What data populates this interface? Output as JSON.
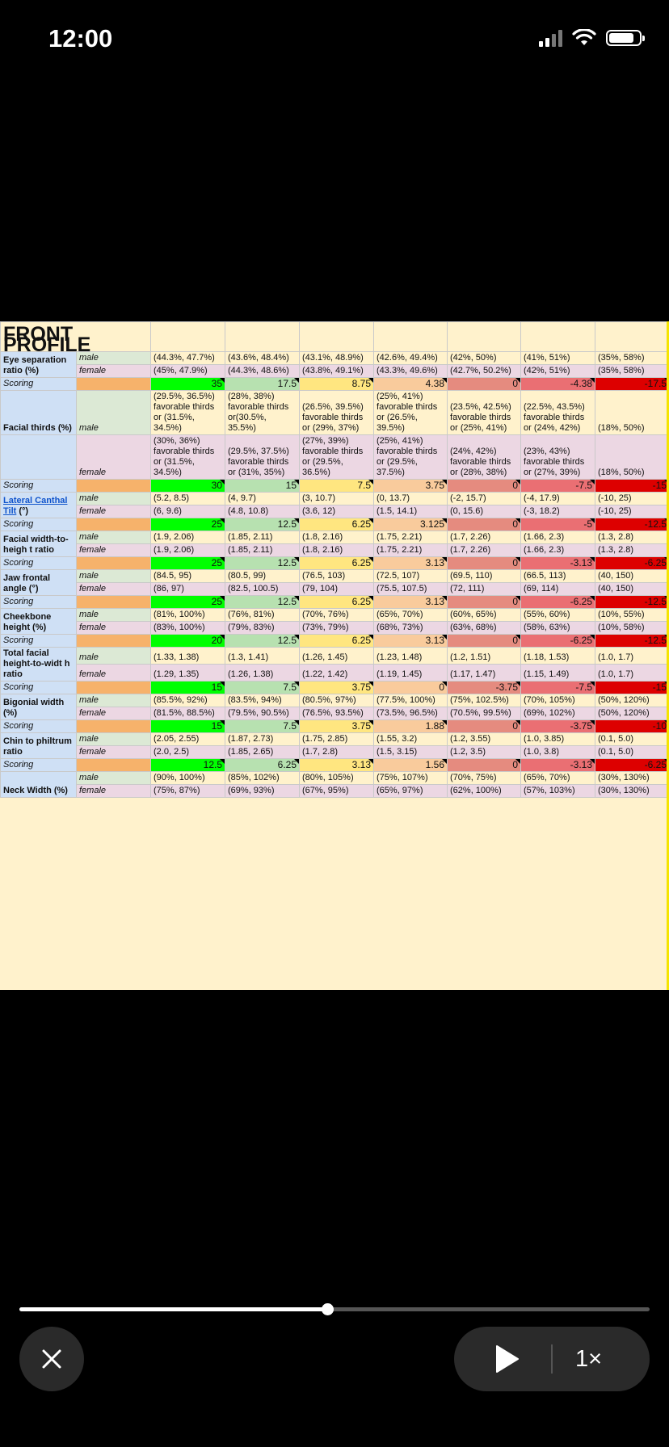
{
  "status_bar": {
    "time": "12:00"
  },
  "sheet": {
    "title": "FRONT PROFILE",
    "score_colors": [
      "#f6b26b",
      "#00ff00",
      "#b7e1b0",
      "#ffe680",
      "#f9cb9c",
      "#e58b7f",
      "#ea6f73",
      "#dd0000"
    ],
    "rows": [
      {
        "kind": "male",
        "label": "Eye separation ratio (%)",
        "label_span": 2,
        "sex": "male",
        "values": [
          "(44.3%, 47.7%)",
          "(43.6%, 48.4%)",
          "(43.1%, 48.9%)",
          "(42.6%, 49.4%)",
          "(42%, 50%)",
          "(41%, 51%)",
          "(35%, 58%)"
        ]
      },
      {
        "kind": "female",
        "sex": "female",
        "values": [
          "(45%, 47.9%)",
          "(44.3%, 48.6%)",
          "(43.8%, 49.1%)",
          "(43.3%, 49.6%)",
          "(42.7%, 50.2%)",
          "(42%, 51%)",
          "(35%, 58%)"
        ]
      },
      {
        "kind": "scoring",
        "label": "Scoring",
        "values": [
          "35",
          "17.5",
          "8.75",
          "4.38",
          "0",
          "-4.38",
          "-17.5"
        ]
      },
      {
        "kind": "male",
        "label": "Facial thirds (%)",
        "label_span": 1,
        "sex": "male",
        "values": [
          "(29.5%, 36.5%) favorable thirds or (31.5%, 34.5%)",
          "(28%, 38%) favorable thirds or(30.5%, 35.5%)",
          "(26.5%, 39.5%) favorable thirds or (29%, 37%)",
          "(25%, 41%) favorable thirds or (26.5%, 39.5%)",
          "(23.5%, 42.5%) favorable thirds or (25%, 41%)",
          "(22.5%, 43.5%) favorable thirds or (24%, 42%)",
          "(18%, 50%)"
        ]
      },
      {
        "kind": "female",
        "blank_label": true,
        "sex": "female",
        "values": [
          "(30%, 36%) favorable thirds or (31.5%, 34.5%)",
          "(29.5%, 37.5%) favorable thirds or (31%, 35%)",
          "(27%, 39%) favorable thirds or (29.5%, 36.5%)",
          "(25%, 41%) favorable thirds or (29.5%, 37.5%)",
          "(24%, 42%) favorable thirds or (28%, 38%)",
          "(23%, 43%) favorable thirds or (27%, 39%)",
          "(18%, 50%)"
        ]
      },
      {
        "kind": "scoring",
        "label": "Scoring",
        "values": [
          "30",
          "15",
          "7.5",
          "3.75",
          "0",
          "-7.5",
          "-15"
        ]
      },
      {
        "kind": "male",
        "label": "Lateral Canthal Tilt",
        "label_suffix": " (°)",
        "link": true,
        "label_span": 2,
        "sex": "male",
        "values": [
          "(5.2, 8.5)",
          "(4, 9.7)",
          "(3, 10.7)",
          "(0, 13.7)",
          "(-2, 15.7)",
          "(-4, 17.9)",
          "(-10, 25)"
        ]
      },
      {
        "kind": "female",
        "sex": "female",
        "values": [
          "(6, 9.6)",
          "(4.8, 10.8)",
          "(3.6, 12)",
          "(1.5, 14.1)",
          "(0, 15.6)",
          "(-3, 18.2)",
          "(-10, 25)"
        ]
      },
      {
        "kind": "scoring",
        "label": "Scoring",
        "values": [
          "25",
          "12.5",
          "6.25",
          "3.125",
          "0",
          "-5",
          "-12.5"
        ]
      },
      {
        "kind": "male",
        "label": "Facial width-to-heigh t ratio",
        "label_span": 2,
        "sex": "male",
        "values": [
          "(1.9, 2.06)",
          "(1.85, 2.11)",
          "(1.8, 2.16)",
          "(1.75, 2.21)",
          "(1.7, 2.26)",
          "(1.66, 2.3)",
          "(1.3, 2.8)"
        ]
      },
      {
        "kind": "female",
        "sex": "female",
        "values": [
          "(1.9, 2.06)",
          "(1.85, 2.11)",
          "(1.8, 2.16)",
          "(1.75, 2.21)",
          "(1.7, 2.26)",
          "(1.66, 2.3)",
          "(1.3, 2.8)"
        ]
      },
      {
        "kind": "scoring",
        "label": "Scoring",
        "values": [
          "25",
          "12.5",
          "6.25",
          "3.13",
          "0",
          "-3.13",
          "-6.25"
        ]
      },
      {
        "kind": "male",
        "label": "Jaw frontal angle (°)",
        "label_span": 2,
        "sex": "male",
        "values": [
          "(84.5, 95)",
          "(80.5, 99)",
          "(76.5, 103)",
          "(72.5, 107)",
          "(69.5, 110)",
          "(66.5, 113)",
          "(40, 150)"
        ]
      },
      {
        "kind": "female",
        "sex": "female",
        "values": [
          "(86, 97)",
          "(82.5, 100.5)",
          "(79, 104)",
          "(75.5, 107.5)",
          "(72, 111)",
          "(69, 114)",
          "(40, 150)"
        ]
      },
      {
        "kind": "scoring",
        "label": "Scoring",
        "values": [
          "25",
          "12.5",
          "6.25",
          "3.13",
          "0",
          "-6.25",
          "-12.5"
        ]
      },
      {
        "kind": "male",
        "label": "Cheekbone height (%)",
        "label_span": 2,
        "sex": "male",
        "values": [
          "(81%, 100%)",
          "(76%, 81%)",
          "(70%, 76%)",
          "(65%, 70%)",
          "(60%, 65%)",
          "(55%, 60%)",
          "(10%, 55%)"
        ]
      },
      {
        "kind": "female",
        "sex": "female",
        "values": [
          "(83%, 100%)",
          "(79%, 83%)",
          "(73%, 79%)",
          "(68%, 73%)",
          "(63%, 68%)",
          "(58%, 63%)",
          "(10%, 58%)"
        ]
      },
      {
        "kind": "scoring",
        "label": "Scoring",
        "values": [
          "20",
          "12.5",
          "6.25",
          "3.13",
          "0",
          "-6.25",
          "-12.5"
        ]
      },
      {
        "kind": "male",
        "label": "Total facial height-to-widt h ratio",
        "label_span": 2,
        "sex": "male",
        "values": [
          "(1.33, 1.38)",
          "(1.3, 1.41)",
          "(1.26, 1.45)",
          "(1.23, 1.48)",
          "(1.2, 1.51)",
          "(1.18, 1.53)",
          "(1.0, 1.7)"
        ]
      },
      {
        "kind": "female",
        "sex": "female",
        "values": [
          "(1.29, 1.35)",
          "(1.26, 1.38)",
          "(1.22, 1.42)",
          "(1.19, 1.45)",
          "(1.17, 1.47)",
          "(1.15, 1.49)",
          "(1.0, 1.7)"
        ]
      },
      {
        "kind": "scoring",
        "label": "Scoring",
        "values": [
          "15",
          "7.5",
          "3.75",
          "0",
          "-3.75",
          "-7.5",
          "-15"
        ]
      },
      {
        "kind": "male",
        "label": "Bigonial width (%)",
        "label_span": 2,
        "sex": "male",
        "values": [
          "(85.5%, 92%)",
          "(83.5%, 94%)",
          "(80.5%, 97%)",
          "(77.5%, 100%)",
          "(75%, 102.5%)",
          "(70%, 105%)",
          "(50%, 120%)"
        ]
      },
      {
        "kind": "female",
        "sex": "female",
        "values": [
          "(81.5%, 88.5%)",
          "(79.5%, 90.5%)",
          "(76.5%, 93.5%)",
          "(73.5%, 96.5%)",
          "(70.5%, 99.5%)",
          "(69%, 102%)",
          "(50%, 120%)"
        ]
      },
      {
        "kind": "scoring",
        "label": "Scoring",
        "values": [
          "15",
          "7.5",
          "3.75",
          "1.88",
          "0",
          "-3.75",
          "-10"
        ]
      },
      {
        "kind": "male",
        "label": "Chin to philtrum ratio",
        "label_span": 2,
        "sex": "male",
        "values": [
          "(2.05, 2.55)",
          "(1.87, 2.73)",
          "(1.75, 2.85)",
          "(1.55, 3.2)",
          "(1.2, 3.55)",
          "(1.0, 3.85)",
          "(0.1, 5.0)"
        ]
      },
      {
        "kind": "female",
        "sex": "female",
        "values": [
          "(2.0, 2.5)",
          "(1.85, 2.65)",
          "(1.7, 2.8)",
          "(1.5, 3.15)",
          "(1.2, 3.5)",
          "(1.0, 3.8)",
          "(0.1, 5.0)"
        ]
      },
      {
        "kind": "scoring",
        "label": "Scoring",
        "values": [
          "12.5",
          "6.25",
          "3.13",
          "1.56",
          "0",
          "-3.13",
          "-6.25"
        ]
      },
      {
        "kind": "male",
        "label": "Neck Width (%)",
        "label_span": 2,
        "sex": "male",
        "values": [
          "(90%, 100%)",
          "(85%, 102%)",
          "(80%, 105%)",
          "(75%, 107%)",
          "(70%, 75%)",
          "(65%, 70%)",
          "(30%, 130%)"
        ]
      },
      {
        "kind": "female",
        "sex": "female",
        "values": [
          "(75%, 87%)",
          "(69%, 93%)",
          "(67%, 95%)",
          "(65%, 97%)",
          "(62%, 100%)",
          "(57%, 103%)",
          "(30%, 130%)"
        ]
      }
    ]
  },
  "player": {
    "progress": 0.488,
    "speed_label": "1×",
    "icons": {
      "close": "close-icon",
      "play": "play-icon"
    }
  }
}
